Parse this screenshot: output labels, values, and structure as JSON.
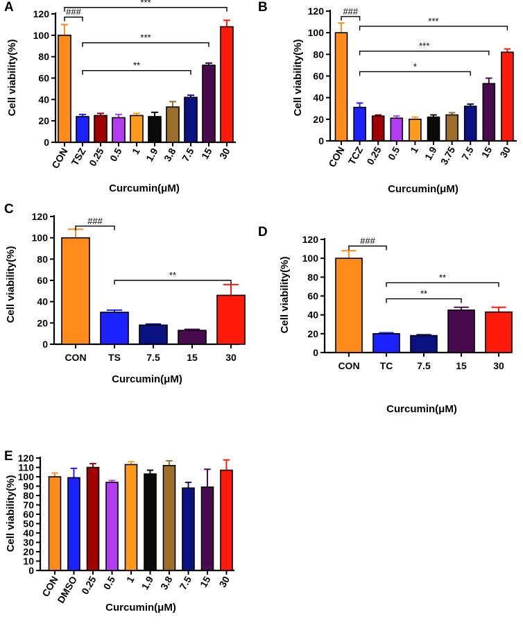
{
  "chart_data": [
    {
      "panel": "A",
      "type": "bar",
      "ylabel": "Cell viability(%)",
      "xlabel": "Curcumin(μM)",
      "ylim": [
        0,
        120
      ],
      "yticks": [
        0,
        20,
        40,
        60,
        80,
        100,
        120
      ],
      "categories": [
        "CON",
        "TSZ",
        "0.25",
        "0.5",
        "1",
        "1.9",
        "3.8",
        "7.5",
        "15",
        "30"
      ],
      "values": [
        100,
        24,
        25,
        23,
        25,
        24,
        33,
        42,
        72,
        108
      ],
      "errors": [
        10,
        2,
        2,
        3,
        2,
        4,
        5,
        2,
        2,
        6
      ],
      "colors": [
        "#FF8C1A",
        "#1A22FF",
        "#A00000",
        "#B23DF0",
        "#FF9A1A",
        "#0A0A0A",
        "#9C6E2A",
        "#0A1282",
        "#4A0A50",
        "#FF1A0A"
      ],
      "annotations": [
        {
          "text": "###",
          "from": "CON",
          "to": "TSZ",
          "y": 117
        },
        {
          "text": "***",
          "from": "CON",
          "to": "30",
          "y": 126
        },
        {
          "text": "***",
          "from": "TSZ",
          "to": "15",
          "y": 93
        },
        {
          "text": "**",
          "from": "TSZ",
          "to": "7.5",
          "y": 67
        }
      ]
    },
    {
      "panel": "B",
      "type": "bar",
      "ylabel": "Cell viability(%)",
      "xlabel": "Curcumin(μM)",
      "ylim": [
        0,
        120
      ],
      "yticks": [
        0,
        20,
        40,
        60,
        80,
        100,
        120
      ],
      "categories": [
        "CON",
        "TCZ",
        "0.25",
        "0.5",
        "1",
        "1.9",
        "3.75",
        "7.5",
        "15",
        "30"
      ],
      "values": [
        100,
        31,
        23,
        21,
        20,
        22,
        24,
        32,
        53,
        82
      ],
      "errors": [
        9,
        4,
        1,
        2,
        2,
        2,
        2,
        2,
        5,
        3
      ],
      "colors": [
        "#FF8C1A",
        "#1A22FF",
        "#A00000",
        "#B23DF0",
        "#FF9A1A",
        "#0A0A0A",
        "#9C6E2A",
        "#0A1282",
        "#4A0A50",
        "#FF1A0A"
      ],
      "annotations": [
        {
          "text": "###",
          "from": "CON",
          "to": "TCZ",
          "y": 115
        },
        {
          "text": "***",
          "from": "TCZ",
          "to": "30",
          "y": 106
        },
        {
          "text": "***",
          "from": "TCZ",
          "to": "15",
          "y": 83
        },
        {
          "text": "*",
          "from": "TCZ",
          "to": "7.5",
          "y": 64
        }
      ]
    },
    {
      "panel": "C",
      "type": "bar",
      "ylabel": "Cell viability(%)",
      "xlabel": "Curcumin(μM)",
      "ylim": [
        0,
        120
      ],
      "yticks": [
        0,
        20,
        40,
        60,
        80,
        100,
        120
      ],
      "categories": [
        "CON",
        "TS",
        "7.5",
        "15",
        "30"
      ],
      "values": [
        100,
        30,
        18,
        13,
        46
      ],
      "errors": [
        8,
        2,
        1,
        1,
        10
      ],
      "colors": [
        "#FF8C1A",
        "#1A22FF",
        "#0A1282",
        "#4A0A50",
        "#FF1A0A"
      ],
      "annotations": [
        {
          "text": "###",
          "from": "CON",
          "to": "TS",
          "y": 111
        },
        {
          "text": "**",
          "from": "TS",
          "to": "30",
          "y": 60
        }
      ]
    },
    {
      "panel": "D",
      "type": "bar",
      "ylabel": "Cell viability(%)",
      "xlabel": "Curcumin(μM)",
      "ylim": [
        0,
        120
      ],
      "yticks": [
        0,
        20,
        40,
        60,
        80,
        100,
        120
      ],
      "categories": [
        "CON",
        "TC",
        "7.5",
        "15",
        "30"
      ],
      "values": [
        100,
        20,
        18,
        45,
        43
      ],
      "errors": [
        8,
        1,
        1,
        3,
        5
      ],
      "colors": [
        "#FF8C1A",
        "#1A22FF",
        "#0A1282",
        "#4A0A50",
        "#FF1A0A"
      ],
      "annotations": [
        {
          "text": "###",
          "from": "CON",
          "to": "TC",
          "y": 113
        },
        {
          "text": "**",
          "from": "TC",
          "to": "30",
          "y": 74
        },
        {
          "text": "**",
          "from": "TC",
          "to": "15",
          "y": 57
        }
      ]
    },
    {
      "panel": "E",
      "type": "bar",
      "ylabel": "Cell viability(%)",
      "xlabel": "Curcumin(μM)",
      "ylim": [
        0,
        120
      ],
      "yticks": [
        0,
        10,
        20,
        30,
        40,
        50,
        60,
        70,
        80,
        90,
        100,
        110,
        120
      ],
      "categories": [
        "CON",
        "DMSO",
        "0.25",
        "0.5",
        "1",
        "1.9",
        "3.8",
        "7.5",
        "15",
        "30"
      ],
      "values": [
        100,
        99,
        110,
        94,
        113,
        103,
        112,
        88,
        89,
        107
      ],
      "errors": [
        4,
        10,
        4,
        2,
        3,
        4,
        5,
        6,
        19,
        11
      ],
      "colors": [
        "#FF8C1A",
        "#1A22FF",
        "#A00000",
        "#B23DF0",
        "#FF9A1A",
        "#0A0A0A",
        "#9C6E2A",
        "#0A1282",
        "#4A0A50",
        "#FF1A0A"
      ],
      "annotations": []
    }
  ]
}
